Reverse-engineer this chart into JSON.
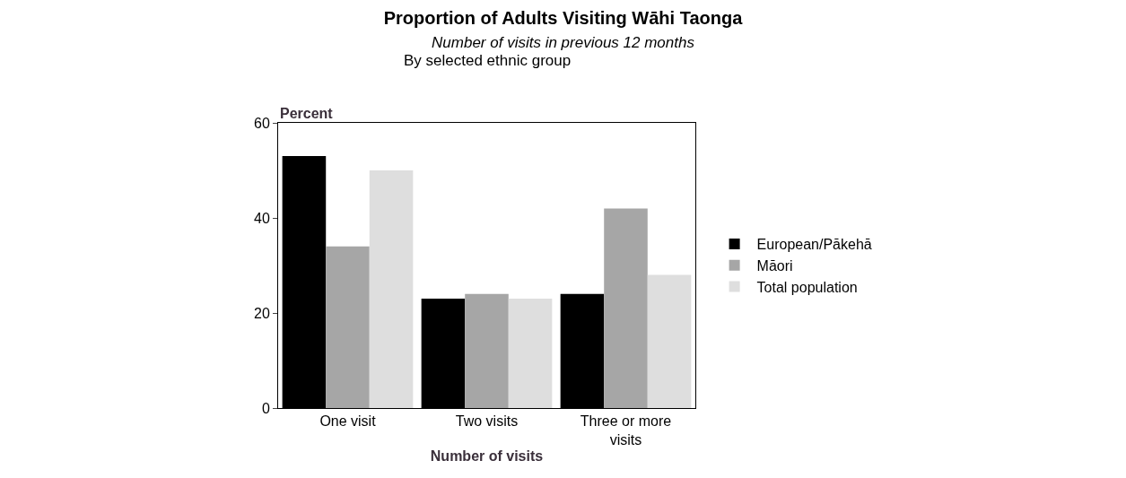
{
  "chart_data": {
    "type": "bar",
    "title": "Proportion of Adults Visiting Wāhi Taonga",
    "subtitle": "Number of visits in previous 12 months",
    "annotations": [
      "By selected ethnic group"
    ],
    "xlabel": "Number of visits",
    "ylabel": "Percent",
    "categories": [
      "One visit",
      "Two visits",
      "Three or more visits"
    ],
    "series": [
      {
        "name": "European/Pākehā",
        "color": "#000000",
        "values": [
          53,
          23,
          24
        ]
      },
      {
        "name": "Māori",
        "color": "#a6a6a6",
        "values": [
          34,
          24,
          42
        ]
      },
      {
        "name": "Total population",
        "color": "#dedede",
        "values": [
          50,
          23,
          28
        ]
      }
    ],
    "ylim": [
      0,
      60
    ],
    "yticks": [
      0,
      20,
      40,
      60
    ],
    "legend": "right"
  }
}
